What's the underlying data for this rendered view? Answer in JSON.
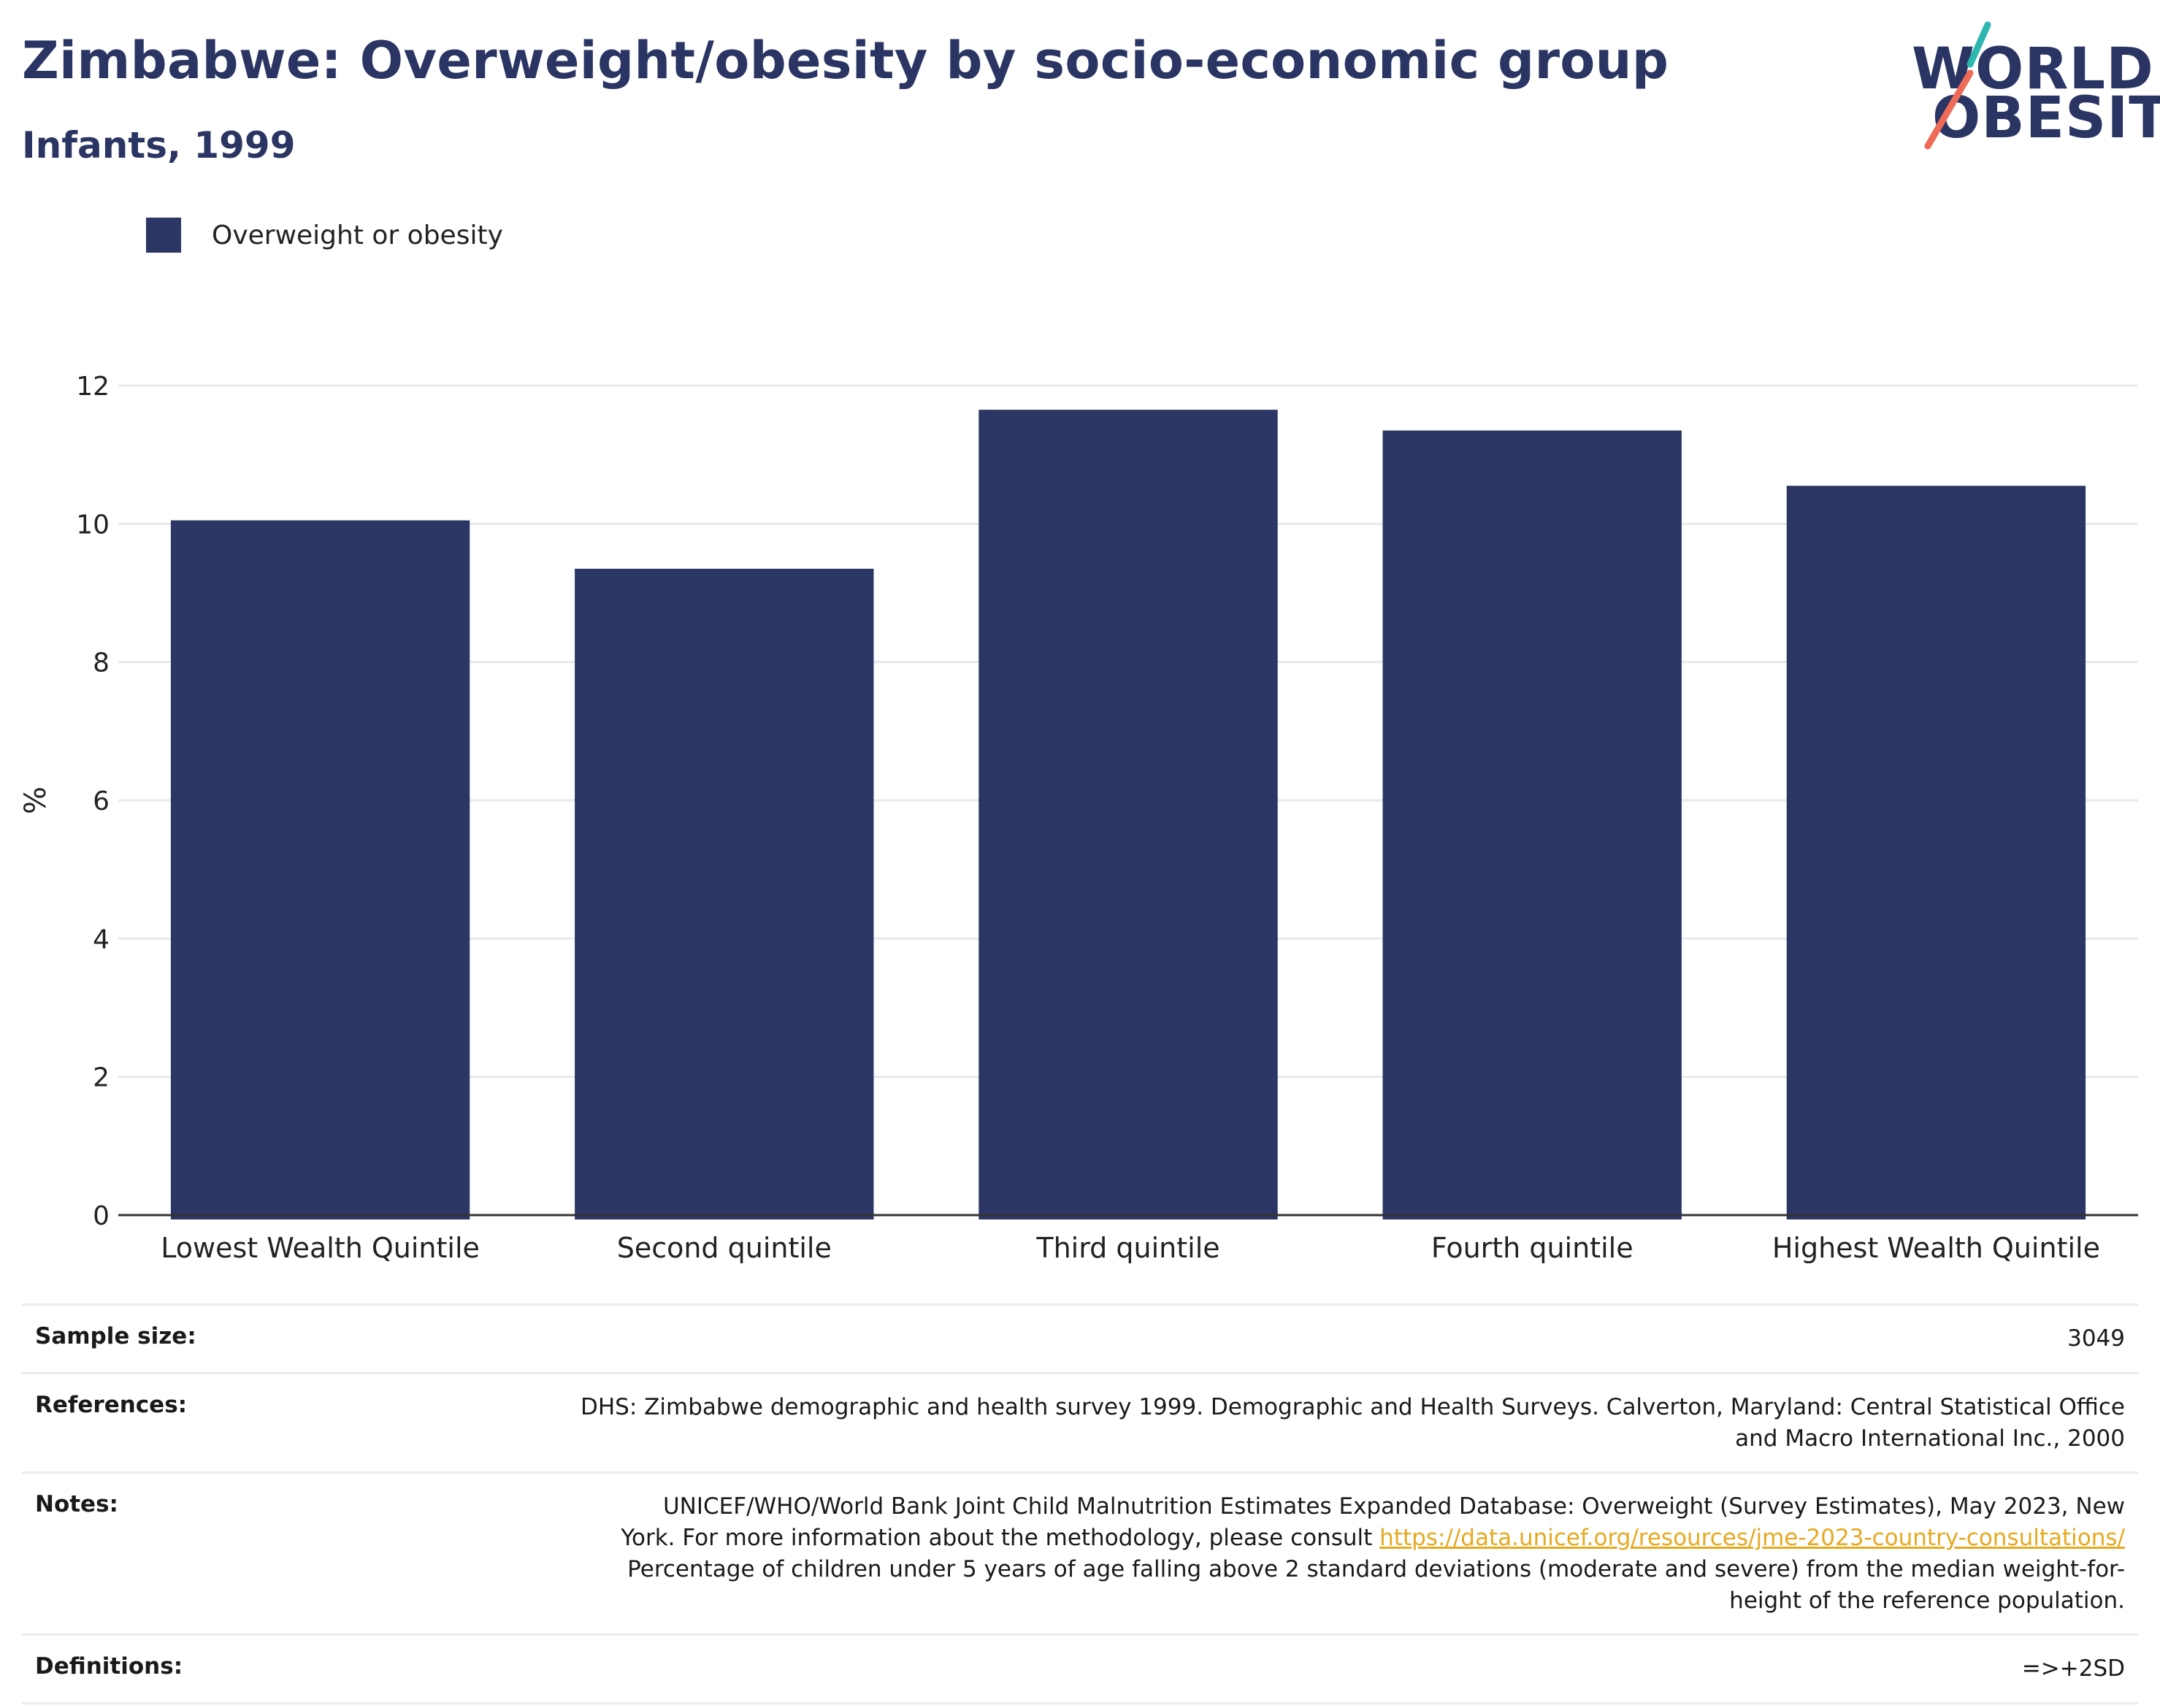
{
  "header": {
    "title": "Zimbabwe: Overweight/obesity by socio-economic group",
    "subtitle": "Infants, 1999"
  },
  "logo": {
    "line1": "WORLD",
    "line2": "OBESITY"
  },
  "colors": {
    "bar": "#2b3664",
    "title": "#2b3564",
    "gridline": "#e8e8ee",
    "axis": "#333333",
    "link": "#e6a91f",
    "logo_teal": "#2bb6b0",
    "logo_coral": "#ee6b57"
  },
  "chart_data": {
    "type": "bar",
    "categories": [
      "Lowest Wealth Quintile",
      "Second quintile",
      "Third quintile",
      "Fourth quintile",
      "Highest Wealth Quintile"
    ],
    "series": [
      {
        "name": "Overweight or obesity",
        "values": [
          10.05,
          9.35,
          11.65,
          11.35,
          10.55
        ]
      }
    ],
    "ylabel": "%",
    "xlabel": "",
    "ylim": [
      0,
      12
    ],
    "yticks": [
      0,
      2,
      4,
      6,
      8,
      10,
      12
    ],
    "grid": true,
    "legend_position": "top-left"
  },
  "meta": {
    "sample_size_label": "Sample size:",
    "sample_size_value": "3049",
    "references_label": "References:",
    "references_value": "DHS: Zimbabwe demographic and health survey 1999. Demographic and Health Surveys. Calverton, Maryland: Central Statistical Office and Macro International Inc., 2000",
    "notes_label": "Notes:",
    "notes_text_before": "UNICEF/WHO/World Bank Joint Child Malnutrition Estimates Expanded Database: Overweight (Survey Estimates), May 2023, New York. For more information about the methodology, please consult ",
    "notes_link": "https://data.unicef.org/resources/jme-2023-country-consultations/",
    "notes_text_after": " Percentage of children under 5 years of age falling above 2 standard deviations (moderate and severe) from the median weight-for-height of the reference population.",
    "definitions_label": "Definitions:",
    "definitions_value": "=>+2SD"
  }
}
